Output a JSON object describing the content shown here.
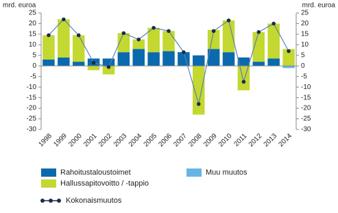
{
  "chart_data": {
    "type": "bar",
    "ylabel": "mrd. euroa",
    "y2label": "mrd. euroa",
    "categories": [
      "1998",
      "1999",
      "2000",
      "2001",
      "2002",
      "2003",
      "2004",
      "2005",
      "2006",
      "2007",
      "2008",
      "2009",
      "2010",
      "2011",
      "2012",
      "2013",
      "2014"
    ],
    "series": [
      {
        "name": "Rahoitustaloustoimet",
        "color": "#0b6aad",
        "values": [
          3,
          4,
          2,
          3.5,
          3.5,
          6.5,
          8,
          6.5,
          7,
          6.5,
          5,
          8,
          6.5,
          4,
          2,
          3.5,
          0
        ]
      },
      {
        "name": "Muu muutos",
        "color": "#67b4e4",
        "values": [
          0,
          0,
          0,
          0,
          0,
          0,
          0,
          0,
          0,
          0,
          0,
          0,
          0,
          0,
          0,
          0,
          -1
        ]
      },
      {
        "name": "Hallussapitovoitto / -tappio",
        "color": "#c3d830",
        "values": [
          11.5,
          18,
          12.5,
          -2,
          -4,
          9,
          4.5,
          11.5,
          9.5,
          0,
          -23,
          9,
          15,
          -11.5,
          14,
          16.5,
          8
        ]
      },
      {
        "name": "Kokonaismuutos",
        "type": "line",
        "color": "#1b2b4f",
        "values": [
          14.5,
          22,
          14.5,
          1.5,
          -0.5,
          15.5,
          12.5,
          18,
          16.5,
          6.5,
          -18,
          16.5,
          21.5,
          -7.5,
          16,
          20,
          7
        ]
      }
    ],
    "ylim": [
      -30,
      25
    ],
    "yticks": [
      -30,
      -25,
      -20,
      -15,
      -10,
      -5,
      0,
      5,
      10,
      15,
      20,
      25
    ]
  }
}
